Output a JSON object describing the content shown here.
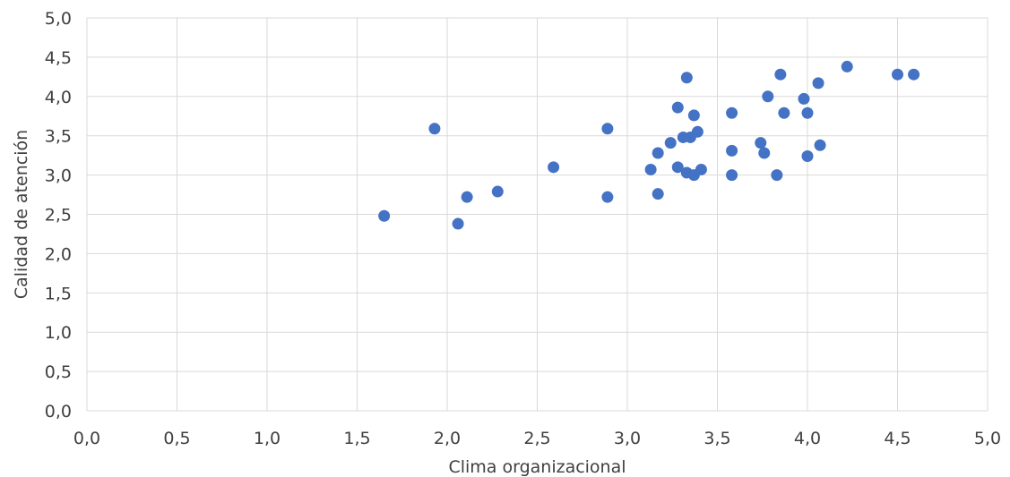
{
  "chart_data": {
    "type": "scatter",
    "title": "",
    "xlabel": "Clima organizacional",
    "ylabel": "Calidad de atención",
    "xlim": [
      0,
      5
    ],
    "ylim": [
      0,
      5
    ],
    "xticks": [
      "0,0",
      "0,5",
      "1,0",
      "1,5",
      "2,0",
      "2,5",
      "3,0",
      "3,5",
      "4,0",
      "4,5",
      "5,0"
    ],
    "yticks": [
      "0,0",
      "0,5",
      "1,0",
      "1,5",
      "2,0",
      "2,5",
      "3,0",
      "3,5",
      "4,0",
      "4,5",
      "5,0"
    ],
    "grid": true,
    "legend": "none",
    "marker_color": "#4472c4",
    "series": [
      {
        "points": [
          [
            1.65,
            2.48
          ],
          [
            1.93,
            3.59
          ],
          [
            2.06,
            2.38
          ],
          [
            2.11,
            2.72
          ],
          [
            2.28,
            2.79
          ],
          [
            2.59,
            3.1
          ],
          [
            2.89,
            3.59
          ],
          [
            2.89,
            2.72
          ],
          [
            3.13,
            3.07
          ],
          [
            3.17,
            3.28
          ],
          [
            3.17,
            2.76
          ],
          [
            3.24,
            3.41
          ],
          [
            3.28,
            3.86
          ],
          [
            3.28,
            3.1
          ],
          [
            3.31,
            3.48
          ],
          [
            3.33,
            4.24
          ],
          [
            3.33,
            3.03
          ],
          [
            3.35,
            3.48
          ],
          [
            3.37,
            3.76
          ],
          [
            3.37,
            3.0
          ],
          [
            3.39,
            3.55
          ],
          [
            3.41,
            3.07
          ],
          [
            3.58,
            3.79
          ],
          [
            3.58,
            3.31
          ],
          [
            3.58,
            3.0
          ],
          [
            3.74,
            3.41
          ],
          [
            3.76,
            3.28
          ],
          [
            3.78,
            4.0
          ],
          [
            3.83,
            3.0
          ],
          [
            3.85,
            4.28
          ],
          [
            3.87,
            3.79
          ],
          [
            3.98,
            3.97
          ],
          [
            4.0,
            3.79
          ],
          [
            4.0,
            3.24
          ],
          [
            4.06,
            4.17
          ],
          [
            4.07,
            3.38
          ],
          [
            4.22,
            4.38
          ],
          [
            4.5,
            4.28
          ],
          [
            4.59,
            4.28
          ]
        ]
      }
    ]
  }
}
